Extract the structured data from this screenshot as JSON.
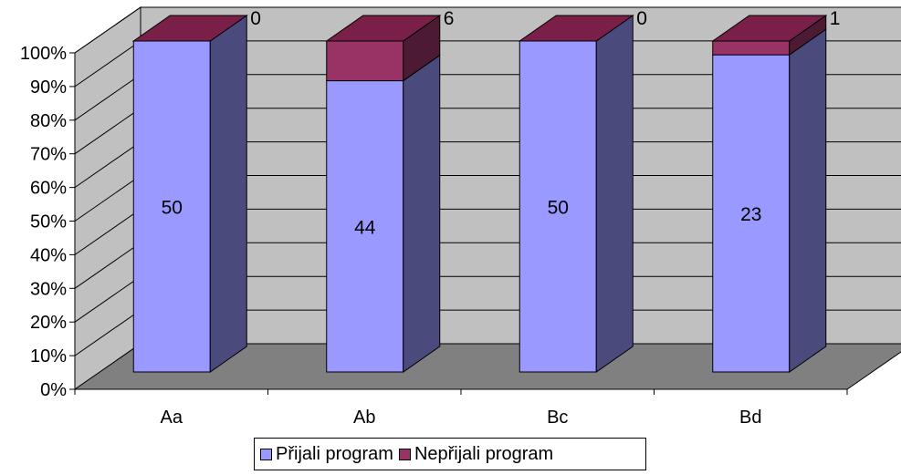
{
  "chart_data": {
    "type": "bar",
    "stacked": "percent",
    "categories": [
      "Aa",
      "Ab",
      "Bc",
      "Bd"
    ],
    "series": [
      {
        "name": "Přijali program",
        "values": [
          50,
          44,
          50,
          23
        ],
        "color": "#9999ff",
        "side_color": "#4a4a7d"
      },
      {
        "name": "Nepřijali program",
        "values": [
          0,
          6,
          0,
          1
        ],
        "color": "#993366",
        "side_color": "#4d1a33"
      }
    ],
    "yticks": [
      "0%",
      "10%",
      "20%",
      "30%",
      "40%",
      "50%",
      "60%",
      "70%",
      "80%",
      "90%",
      "100%"
    ],
    "ylim": [
      0,
      100
    ],
    "grid": true,
    "legend_position": "bottom",
    "colors": {
      "wall": "#c0c0c0",
      "floor": "#808080",
      "grid": "#000000",
      "top_face": "#7a2048"
    }
  }
}
